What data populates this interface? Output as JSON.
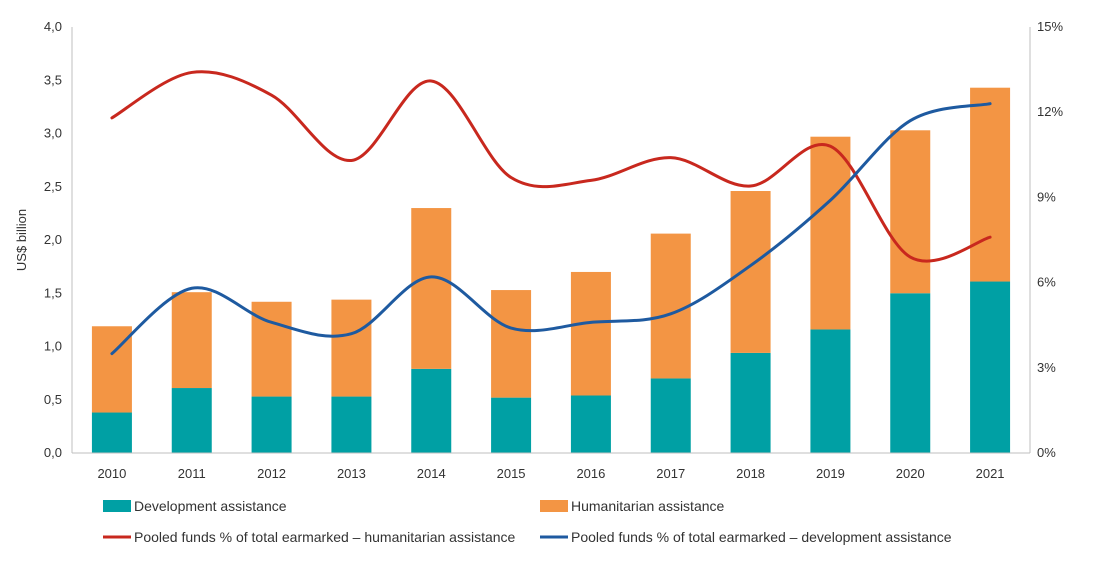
{
  "chart_data": {
    "type": "bar",
    "stacked": true,
    "categories": [
      "2010",
      "2011",
      "2012",
      "2013",
      "2014",
      "2015",
      "2016",
      "2017",
      "2018",
      "2019",
      "2020",
      "2021"
    ],
    "ylabel": "US$ billion",
    "ylim": [
      0,
      4.0
    ],
    "y_ticks": [
      "0,0",
      "0,5",
      "1,0",
      "1,5",
      "2,0",
      "2,5",
      "3,0",
      "3,5",
      "4,0"
    ],
    "y2lim": [
      0,
      15
    ],
    "y2_ticks": [
      "0%",
      "3%",
      "6%",
      "9%",
      "12%",
      "15%"
    ],
    "grid": false,
    "legend_position": "bottom",
    "series": [
      {
        "name": "Development assistance",
        "kind": "bar",
        "color": "#00A0A4",
        "values": [
          0.38,
          0.61,
          0.53,
          0.53,
          0.79,
          0.52,
          0.54,
          0.7,
          0.94,
          1.16,
          1.5,
          1.61
        ]
      },
      {
        "name": "Humanitarian assistance",
        "kind": "bar",
        "color": "#F39544",
        "values": [
          0.81,
          0.9,
          0.89,
          0.91,
          1.51,
          1.01,
          1.16,
          1.36,
          1.52,
          1.81,
          1.53,
          1.82
        ]
      },
      {
        "name": "Pooled funds % of total earmarked – humanitarian assistance",
        "kind": "line",
        "axis": "right",
        "color": "#C8281E",
        "values": [
          11.8,
          13.4,
          12.6,
          10.3,
          13.1,
          9.7,
          9.6,
          10.4,
          9.4,
          10.8,
          6.9,
          7.6
        ]
      },
      {
        "name": "Pooled funds % of total earmarked – development assistance",
        "kind": "line",
        "axis": "right",
        "color": "#1E5AA0",
        "values": [
          3.5,
          5.8,
          4.6,
          4.2,
          6.2,
          4.4,
          4.6,
          4.9,
          6.6,
          8.9,
          11.7,
          12.3
        ]
      }
    ]
  }
}
